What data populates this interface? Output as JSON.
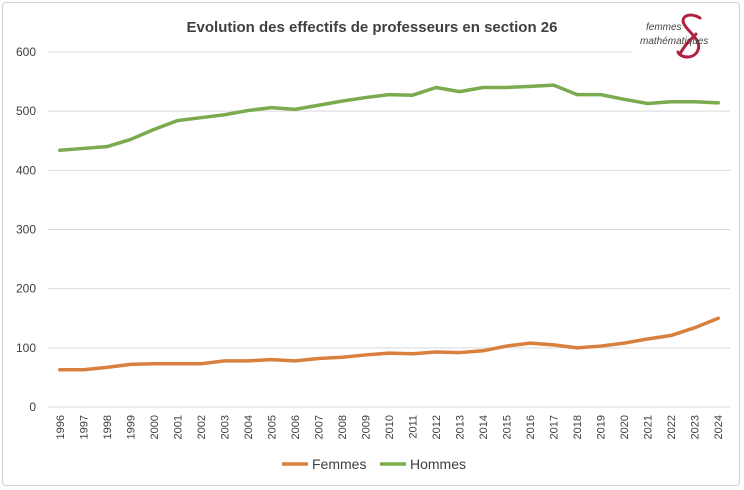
{
  "chart_data": {
    "type": "line",
    "title": "Evolution des effectifs de professeurs en section 26",
    "xlabel": "",
    "ylabel": "",
    "ylim": [
      0,
      600
    ],
    "yticks": [
      0,
      100,
      200,
      300,
      400,
      500,
      600
    ],
    "grid": true,
    "legend_position": "bottom",
    "x": [
      "1996",
      "1997",
      "1998",
      "1999",
      "2000",
      "2001",
      "2002",
      "2003",
      "2004",
      "2005",
      "2006",
      "2007",
      "2008",
      "2009",
      "2010",
      "2011",
      "2012",
      "2013",
      "2014",
      "2015",
      "2016",
      "2017",
      "2018",
      "2019",
      "2020",
      "2021",
      "2022",
      "2023",
      "2024"
    ],
    "series": [
      {
        "name": "Femmes",
        "color": "#D9803F",
        "values": [
          63,
          63,
          67,
          72,
          73,
          73,
          73,
          78,
          78,
          80,
          78,
          82,
          84,
          88,
          91,
          90,
          93,
          92,
          95,
          103,
          108,
          105,
          100,
          103,
          108,
          115,
          121,
          134,
          150
        ]
      },
      {
        "name": "Hommes",
        "color": "#7BAA4F",
        "values": [
          434,
          437,
          440,
          452,
          469,
          484,
          489,
          494,
          501,
          506,
          503,
          510,
          517,
          523,
          528,
          527,
          540,
          533,
          540,
          540,
          542,
          544,
          528,
          528,
          520,
          513,
          516,
          516,
          514
        ]
      }
    ]
  },
  "logo": {
    "text": "femmes & mathématiques",
    "color": "#B0213F"
  }
}
